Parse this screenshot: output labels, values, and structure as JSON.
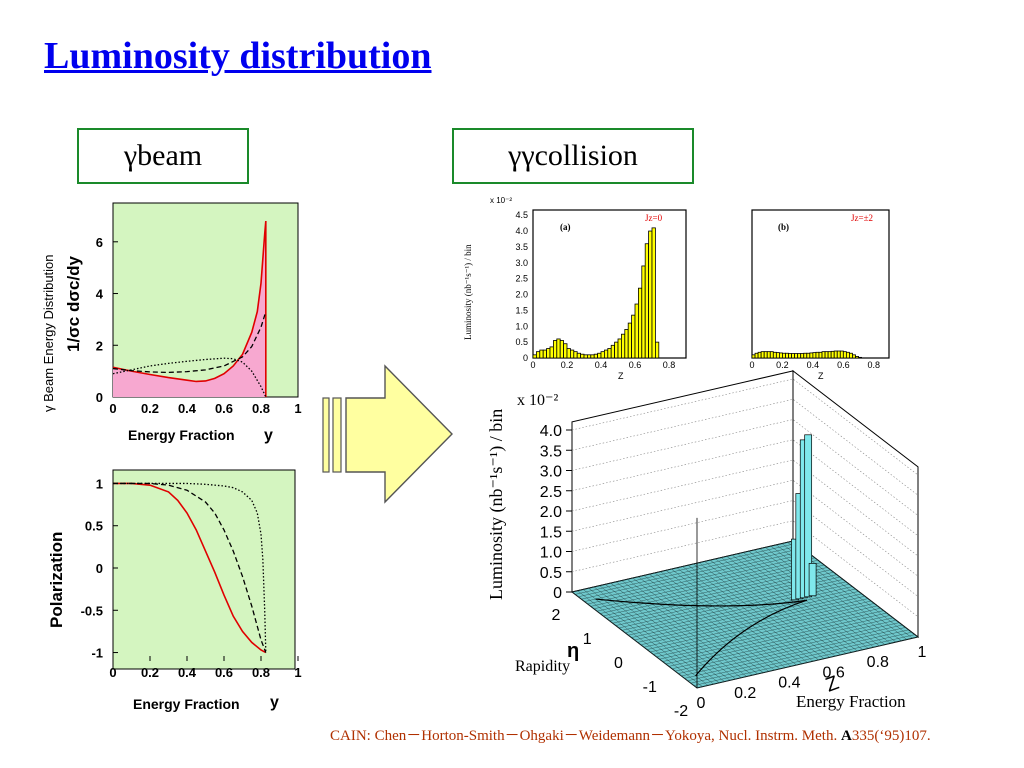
{
  "title": "Luminosity distribution",
  "labels": {
    "left_box": "γbeam",
    "right_box": "γγcollision"
  },
  "citation": {
    "text": "CAIN: Chen－Horton-Smith－Ohgaki－Weidemann－Yokoya, Nucl. Instrm. Meth. ",
    "bold": "A",
    "tail": "335(‘95)107."
  },
  "colors": {
    "green_panel": "#d4f5c0",
    "pink_fill": "#f7a8d0",
    "red_curve": "#e00000",
    "yellow_hist": "#ffff00",
    "cyan_hist": "#7fe8ec",
    "arrow_fill": "#ffffa0",
    "box_border": "#1a8a2a",
    "title": "#0000ee",
    "citation": "#b03000"
  },
  "chart_data": [
    {
      "type": "area",
      "panel": "beam-energy",
      "ylabel": "γ Beam Energy Distribution",
      "ylabel2": "1/σc dσc/dy",
      "xlabel": "Energy Fraction",
      "xvar": "y",
      "xlim": [
        0,
        1
      ],
      "ylim": [
        0,
        7.5
      ],
      "xticks": [
        "0",
        "0.2",
        "0.4",
        "0.6",
        "0.8",
        "1"
      ],
      "yticks": [
        "0",
        "2",
        "4",
        "6"
      ],
      "series": [
        {
          "style": "red-solid-filled",
          "x": [
            0,
            0.1,
            0.2,
            0.3,
            0.4,
            0.45,
            0.5,
            0.55,
            0.6,
            0.65,
            0.7,
            0.75,
            0.78,
            0.8,
            0.82,
            0.826
          ],
          "y": [
            1.15,
            1.0,
            0.87,
            0.75,
            0.65,
            0.6,
            0.62,
            0.72,
            0.9,
            1.2,
            1.65,
            2.5,
            3.3,
            4.4,
            6.3,
            6.8
          ]
        },
        {
          "style": "black-dashed",
          "x": [
            0,
            0.1,
            0.2,
            0.3,
            0.4,
            0.5,
            0.6,
            0.7,
            0.75,
            0.8,
            0.826
          ],
          "y": [
            1.1,
            1.02,
            0.97,
            0.95,
            0.98,
            1.05,
            1.2,
            1.55,
            1.95,
            2.7,
            3.3
          ]
        },
        {
          "style": "black-dotted",
          "x": [
            0,
            0.1,
            0.2,
            0.3,
            0.4,
            0.5,
            0.6,
            0.65,
            0.7,
            0.75,
            0.8,
            0.826
          ],
          "y": [
            0.9,
            1.05,
            1.2,
            1.3,
            1.38,
            1.45,
            1.5,
            1.48,
            1.35,
            1.0,
            0.4,
            0.0
          ]
        }
      ]
    },
    {
      "type": "line",
      "panel": "polarization",
      "ylabel": "Polarization",
      "xlabel": "Energy Fraction",
      "xvar": "y",
      "xlim": [
        0,
        1
      ],
      "ylim": [
        -1.1,
        1.1
      ],
      "xticks": [
        "0",
        "0.2",
        "0.4",
        "0.6",
        "0.8",
        "1"
      ],
      "yticks": [
        "-1",
        "-0.5",
        "0",
        "0.5",
        "1"
      ],
      "series": [
        {
          "style": "red-solid",
          "x": [
            0,
            0.1,
            0.2,
            0.3,
            0.35,
            0.4,
            0.45,
            0.5,
            0.55,
            0.6,
            0.65,
            0.7,
            0.75,
            0.8,
            0.826
          ],
          "y": [
            1,
            1,
            0.98,
            0.9,
            0.8,
            0.65,
            0.45,
            0.2,
            -0.05,
            -0.32,
            -0.57,
            -0.75,
            -0.88,
            -0.97,
            -1
          ]
        },
        {
          "style": "black-dashed",
          "x": [
            0,
            0.1,
            0.2,
            0.3,
            0.4,
            0.5,
            0.55,
            0.6,
            0.65,
            0.7,
            0.75,
            0.8,
            0.826
          ],
          "y": [
            1,
            1,
            1,
            0.98,
            0.92,
            0.78,
            0.65,
            0.45,
            0.2,
            -0.1,
            -0.45,
            -0.85,
            -1
          ]
        },
        {
          "style": "black-dotted",
          "x": [
            0,
            0.2,
            0.4,
            0.5,
            0.6,
            0.65,
            0.7,
            0.75,
            0.78,
            0.8,
            0.81,
            0.82,
            0.826
          ],
          "y": [
            1,
            1,
            1,
            0.99,
            0.97,
            0.95,
            0.9,
            0.8,
            0.65,
            0.4,
            0.1,
            -0.5,
            -1
          ]
        }
      ]
    },
    {
      "type": "bar",
      "panel": "a",
      "tag": "(a)",
      "jz": "Jz=0",
      "ylabel": "Luminosity (nb⁻¹s⁻¹) / bin",
      "xlabel": "Z",
      "yscale_label": "x 10⁻²",
      "xlim": [
        0,
        0.9
      ],
      "ylim": [
        0,
        4.6
      ],
      "xticks": [
        "0",
        "0.2",
        "0.4",
        "0.6",
        "0.8"
      ],
      "yticks": [
        "0",
        "0.5",
        "1.0",
        "1.5",
        "2.0",
        "2.5",
        "3.0",
        "3.5",
        "4.0",
        "4.5"
      ],
      "bin_width": 0.02,
      "values": [
        0.1,
        0.2,
        0.25,
        0.25,
        0.3,
        0.35,
        0.55,
        0.6,
        0.55,
        0.45,
        0.3,
        0.25,
        0.2,
        0.15,
        0.12,
        0.1,
        0.1,
        0.1,
        0.12,
        0.15,
        0.2,
        0.25,
        0.3,
        0.4,
        0.5,
        0.6,
        0.75,
        0.9,
        1.1,
        1.35,
        1.7,
        2.2,
        2.9,
        3.6,
        4.0,
        4.1,
        0.5,
        0.0,
        0.0,
        0.0,
        0.0,
        0.0,
        0.0,
        0.0,
        0.0
      ]
    },
    {
      "type": "bar",
      "panel": "b",
      "tag": "(b)",
      "jz": "Jz=±2",
      "xlabel": "Z",
      "xlim": [
        0,
        0.9
      ],
      "ylim": [
        0,
        4.6
      ],
      "xticks": [
        "0",
        "0.2",
        "0.4",
        "0.6",
        "0.8"
      ],
      "bin_width": 0.02,
      "values": [
        0.1,
        0.15,
        0.18,
        0.2,
        0.2,
        0.2,
        0.2,
        0.18,
        0.17,
        0.16,
        0.15,
        0.15,
        0.14,
        0.14,
        0.14,
        0.14,
        0.14,
        0.15,
        0.15,
        0.16,
        0.17,
        0.18,
        0.18,
        0.2,
        0.2,
        0.2,
        0.21,
        0.22,
        0.22,
        0.22,
        0.2,
        0.18,
        0.15,
        0.1,
        0.05,
        0.02,
        0,
        0,
        0,
        0,
        0,
        0,
        0,
        0,
        0
      ]
    },
    {
      "type": "bar",
      "panel": "3d-lego",
      "zlabel": "Luminosity (nb⁻¹s⁻¹) / bin",
      "zscale_label": "x 10⁻²",
      "zticks": [
        "0",
        "0.5",
        "1.0",
        "1.5",
        "2.0",
        "2.5",
        "3.0",
        "3.5",
        "4.0"
      ],
      "xlabel": "Z",
      "xlabel2": "Energy Fraction",
      "xticks": [
        "0",
        "0.2",
        "0.4",
        "0.6",
        "0.8",
        "1"
      ],
      "ylabel": "η",
      "ylabel2": "Rapidity",
      "yticks": [
        "2",
        "1",
        "0",
        "-1",
        "-2"
      ],
      "peak_z": [
        0.74,
        0.76,
        0.78,
        0.8,
        0.82
      ],
      "peak_values": [
        1.5,
        2.6,
        3.9,
        4.0,
        0.8
      ]
    }
  ]
}
